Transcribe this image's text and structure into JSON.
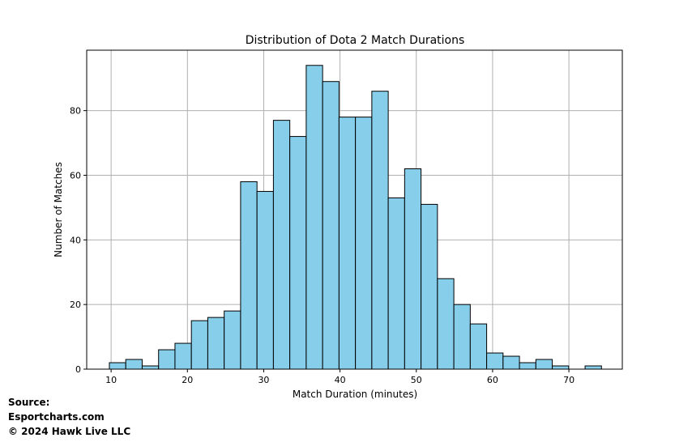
{
  "chart_data": {
    "type": "bar",
    "title": "Distribution of Dota 2 Match Durations",
    "xlabel": "Match Duration (minutes)",
    "ylabel": "Number of Matches",
    "xlim": [
      6.8,
      77.0
    ],
    "ylim": [
      0,
      98.7
    ],
    "xticks": [
      10,
      20,
      30,
      40,
      50,
      60,
      70
    ],
    "yticks": [
      0,
      20,
      40,
      60,
      80
    ],
    "grid": true,
    "bar_color": "#87CEEB",
    "edge_color": "#000000",
    "bin_start": 9.77,
    "bin_width": 2.15,
    "values": [
      2,
      3,
      1,
      6,
      8,
      15,
      16,
      18,
      58,
      55,
      77,
      72,
      94,
      89,
      78,
      78,
      86,
      53,
      62,
      51,
      28,
      20,
      14,
      5,
      4,
      2,
      3,
      1,
      0,
      1
    ]
  },
  "source": {
    "line1": "Source:",
    "line2": "Esportcharts.com",
    "line3": "© 2024 Hawk Live LLC"
  }
}
